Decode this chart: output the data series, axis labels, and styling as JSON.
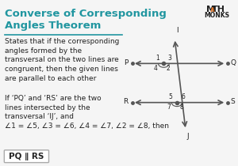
{
  "title": "Converse of Corresponding\nAngles Theorem",
  "title_color": "#2196a0",
  "bg_color": "#f5f5f5",
  "text1": "States that if the corresponding\nangles formed by the\ntransversal on the two lines are\ncongruent, then the given lines\nare parallel to each other",
  "text2": "If ‘PQ’ and ‘RS’ are the two\nlines intersected by the\ntransversal ‘IJ’, and\n∠1 = ∠5, ∠3 = ∠6, ∠4 = ∠7, ∠2 = ∠8, then",
  "conclusion": "PQ ∥ RS",
  "mathmonks_color": "#e07020",
  "line_color": "#555555",
  "conclusion_bg": "#ffffff",
  "conclusion_border": "#cccccc"
}
